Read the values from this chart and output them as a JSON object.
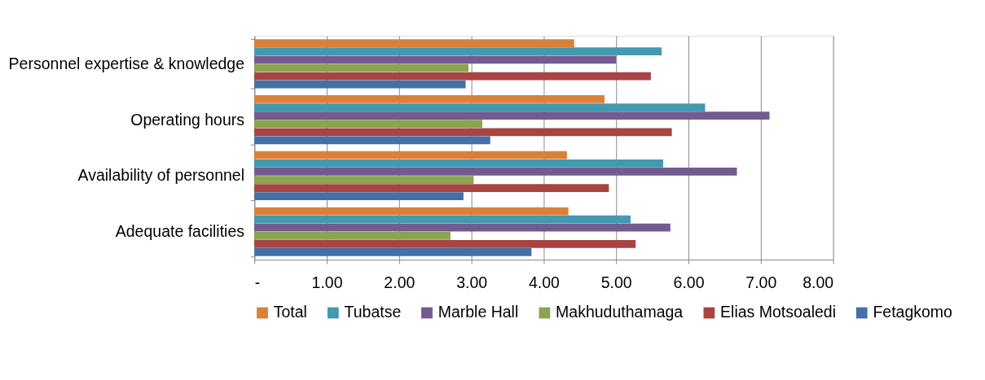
{
  "chart_data": {
    "type": "bar",
    "orientation": "horizontal",
    "categories": [
      "Personnel expertise & knowledge",
      "Operating hours",
      "Availability of personnel",
      "Adequate facilities"
    ],
    "series": [
      {
        "name": "Total",
        "color": "#d9813b",
        "values": [
          4.42,
          4.84,
          4.32,
          4.34
        ]
      },
      {
        "name": "Tubatse",
        "color": "#4299b0",
        "values": [
          5.63,
          6.23,
          5.65,
          5.2
        ]
      },
      {
        "name": "Marble Hall",
        "color": "#735a91",
        "values": [
          5.0,
          7.12,
          6.67,
          5.75
        ]
      },
      {
        "name": "Makhuduthamaga",
        "color": "#8aa54e",
        "values": [
          2.96,
          3.15,
          3.03,
          2.71
        ]
      },
      {
        "name": "Elias Motsoaledi",
        "color": "#a84442",
        "values": [
          5.48,
          5.77,
          4.9,
          5.27
        ]
      },
      {
        "name": "Fetagkomo",
        "color": "#4470a8",
        "values": [
          2.92,
          3.26,
          2.89,
          3.83
        ]
      }
    ],
    "xlim": [
      0,
      8
    ],
    "xticks": [
      {
        "value": 0,
        "label": "-"
      },
      {
        "value": 1,
        "label": "1.00"
      },
      {
        "value": 2,
        "label": "2.00"
      },
      {
        "value": 3,
        "label": "3.00"
      },
      {
        "value": 4,
        "label": "4.00"
      },
      {
        "value": 5,
        "label": "5.00"
      },
      {
        "value": 6,
        "label": "6.00"
      },
      {
        "value": 7,
        "label": "7.00"
      },
      {
        "value": 8,
        "label": "8.00"
      }
    ],
    "grid": "x",
    "legend": "bottom"
  }
}
